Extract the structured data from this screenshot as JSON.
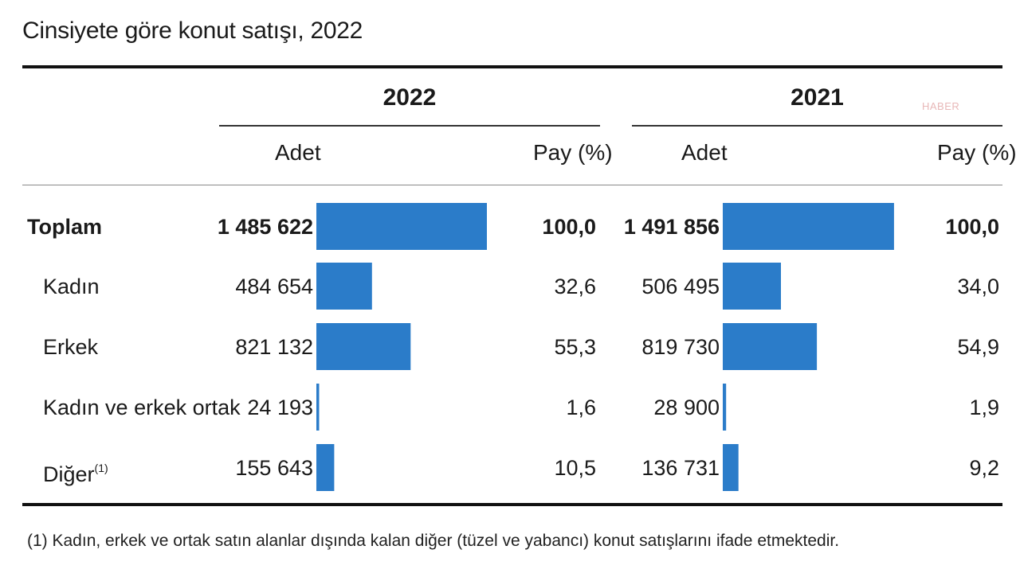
{
  "title": "Cinsiyete göre konut satışı, 2022",
  "watermark": "HABER",
  "columns": {
    "year_2022": "2022",
    "year_2021": "2021",
    "count_label": "Adet",
    "share_label": "Pay (%)"
  },
  "footnote": "(1) Kadın, erkek ve ortak satın alanlar dışında kalan diğer (tüzel ve yabancı) konut satışlarını ifade etmektedir.",
  "bar_color": "#2b7cc9",
  "chart_data": {
    "type": "table",
    "title": "Cinsiyete göre konut satışı, 2022",
    "series_names": [
      "2022",
      "2021"
    ],
    "rows": [
      {
        "label": "Toplam",
        "sup": "",
        "bold": true,
        "adet_2022": "1 485 622",
        "pay_2022": "100,0",
        "v2022": 1485622,
        "adet_2021": "1 491 856",
        "pay_2021": "100,0",
        "v2021": 1491856
      },
      {
        "label": "Kadın",
        "sup": "",
        "bold": false,
        "adet_2022": "484 654",
        "pay_2022": "32,6",
        "v2022": 484654,
        "adet_2021": "506 495",
        "pay_2021": "34,0",
        "v2021": 506495
      },
      {
        "label": "Erkek",
        "sup": "",
        "bold": false,
        "adet_2022": "821 132",
        "pay_2022": "55,3",
        "v2022": 821132,
        "adet_2021": "819 730",
        "pay_2021": "54,9",
        "v2021": 819730
      },
      {
        "label": "Kadın ve erkek ortak",
        "sup": "",
        "bold": false,
        "adet_2022": "24 193",
        "pay_2022": "1,6",
        "v2022": 24193,
        "adet_2021": "28 900",
        "pay_2021": "1,9",
        "v2021": 28900
      },
      {
        "label": "Diğer",
        "sup": "(1)",
        "bold": false,
        "adet_2022": "155 643",
        "pay_2022": "10,5",
        "v2022": 155643,
        "adet_2021": "136 731",
        "pay_2021": "9,2",
        "v2021": 136731
      }
    ]
  }
}
